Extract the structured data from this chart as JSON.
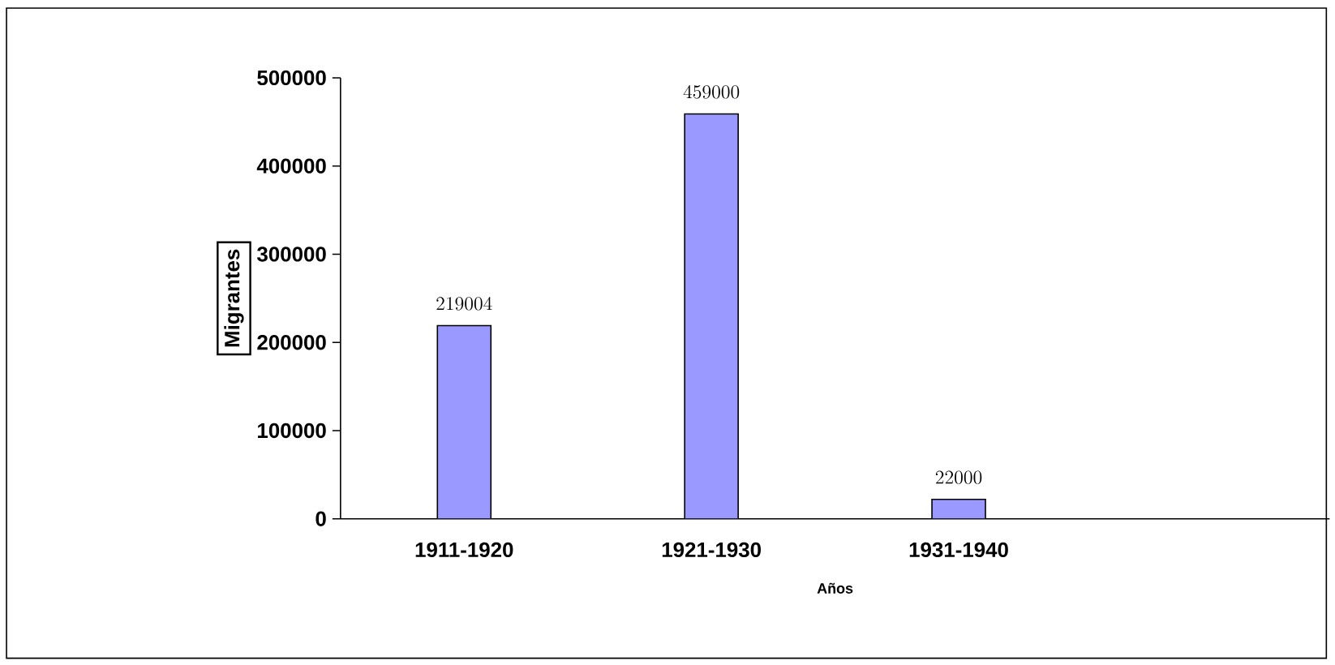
{
  "chart_data": {
    "type": "bar",
    "categories": [
      "1911-1920",
      "1921-1930",
      "1931-1940",
      null
    ],
    "values": [
      219004,
      459000,
      22000,
      null
    ],
    "color": "#9999ff",
    "xlabel": "Años",
    "ylabel": "Migrantes",
    "ylim": [
      0,
      500000
    ],
    "yticks": [
      0,
      100000,
      200000,
      300000,
      400000,
      500000
    ],
    "data_labels": true,
    "grid": false
  }
}
